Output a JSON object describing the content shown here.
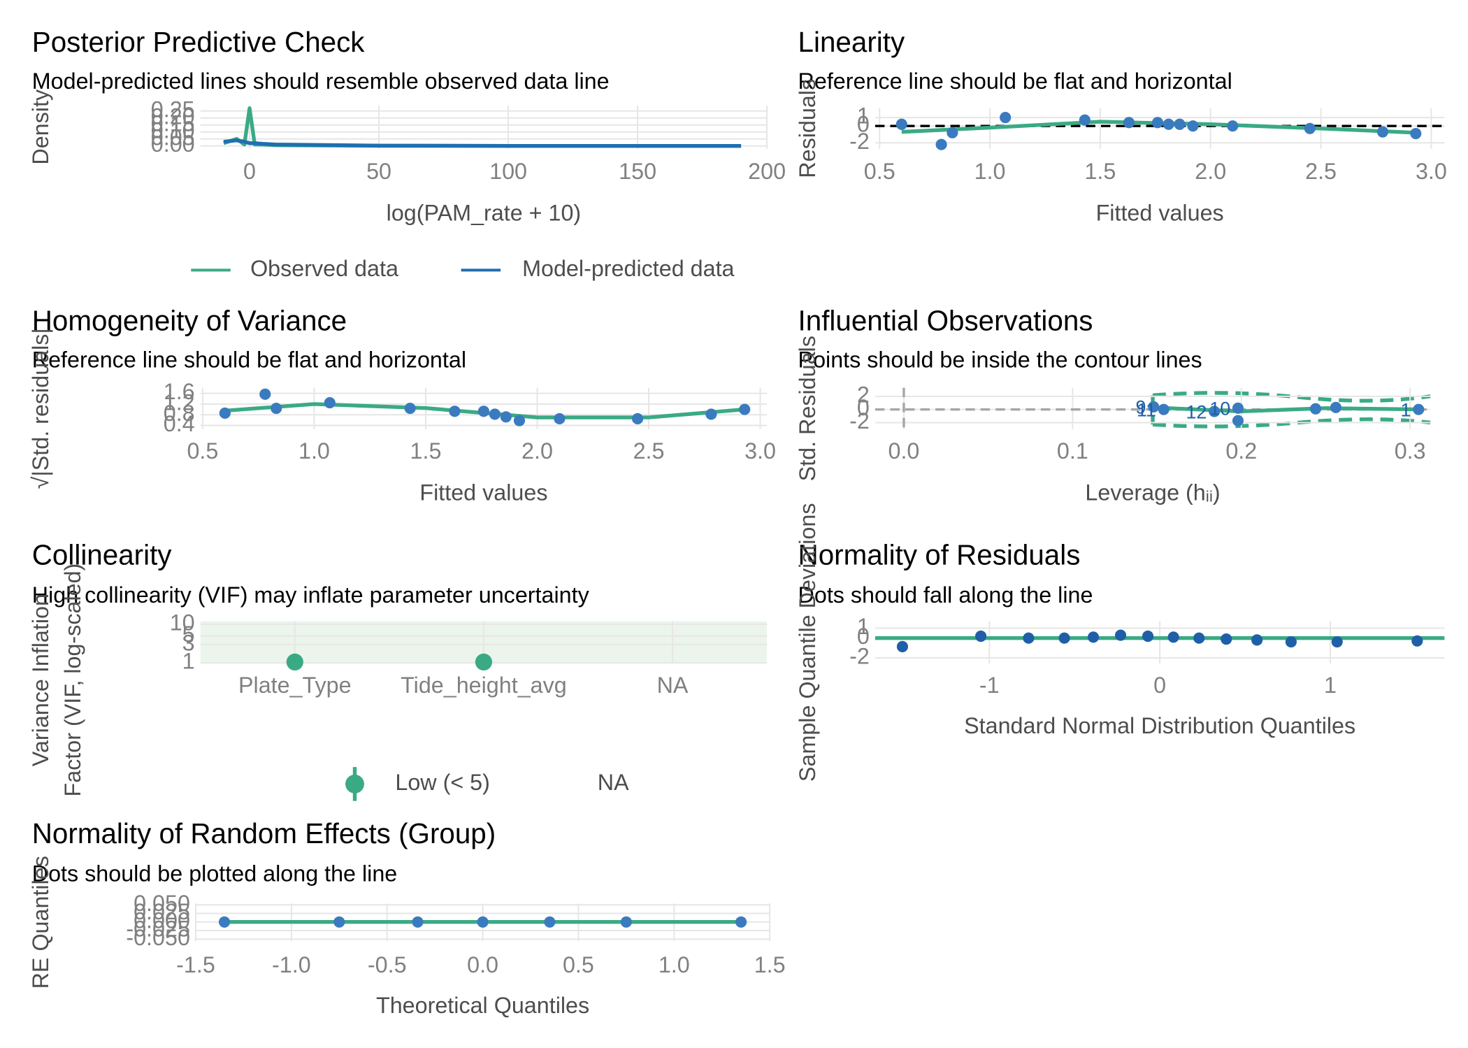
{
  "chart_data": [
    {
      "type": "line",
      "title": "Posterior Predictive Check",
      "subtitle": "Model-predicted lines should resemble observed data line",
      "x_label": "log(PAM_rate + 10)",
      "y_label": "Density",
      "grid": true,
      "legend_position": "bottom",
      "xlim": [
        -19,
        200
      ],
      "xticks": [
        0,
        50,
        100,
        150,
        200
      ],
      "ylim": [
        -0.02,
        0.29
      ],
      "yticks": [
        {
          "value": 0,
          "label": "0.00"
        },
        0.05,
        {
          "value": 0.1,
          "label": "0.10"
        },
        0.15,
        {
          "value": 0.2,
          "label": "0.20"
        },
        0.25
      ],
      "series": [
        {
          "name": "Observed data",
          "mode": "lines",
          "color": "#3aaa85",
          "x": [
            -10,
            -5,
            -2,
            0,
            2,
            5,
            10,
            50,
            100,
            150,
            190
          ],
          "values": [
            0.02,
            0.05,
            0.01,
            0.27,
            0.01,
            0.01,
            0.005,
            0.001,
            0,
            0,
            0
          ]
        },
        {
          "name": "Model-predicted data",
          "mode": "lines",
          "color": "#1f6fb0",
          "x": [
            -10,
            -5,
            -2,
            0,
            2,
            5,
            10,
            50,
            100,
            150,
            190
          ],
          "values": [
            0.03,
            0.04,
            0.03,
            0.02,
            0.02,
            0.015,
            0.01,
            0.002,
            0,
            0,
            0
          ]
        }
      ]
    },
    {
      "type": "scatter",
      "title": "Linearity",
      "subtitle": "Reference line should be flat and horizontal",
      "x_label": "Fitted values",
      "y_label": "Residuals",
      "grid": true,
      "xlim": [
        0.48,
        3.06
      ],
      "xticks": [
        0.5,
        {
          "value": 1,
          "label": "1.0"
        },
        1.5,
        {
          "value": 2,
          "label": "2.0"
        },
        2.5,
        {
          "value": 3,
          "label": "3.0"
        }
      ],
      "ylim": [
        -2.7,
        2.1
      ],
      "yticks": [
        -2,
        0,
        1
      ],
      "reference_lines": [
        {
          "axis": "y",
          "value": 0,
          "color": "#000000",
          "dashed": true
        }
      ],
      "series": [
        {
          "mode": "lines",
          "color": "#3aaa85",
          "x": [
            0.6,
            1.0,
            1.5,
            2.0,
            2.5,
            2.93
          ],
          "values": [
            -0.7,
            -0.2,
            0.5,
            0.2,
            -0.3,
            -0.8
          ]
        },
        {
          "mode": "markers",
          "color": "#3a7bbf",
          "x": [
            0.6,
            0.78,
            0.83,
            1.07,
            1.43,
            1.63,
            1.76,
            1.81,
            1.86,
            1.92,
            2.1,
            2.45,
            2.78,
            2.93
          ],
          "values": [
            0.2,
            -2.2,
            -0.8,
            1.0,
            0.7,
            0.4,
            0.4,
            0.2,
            0.2,
            0,
            0,
            -0.3,
            -0.7,
            -0.9
          ]
        }
      ]
    },
    {
      "type": "scatter",
      "title": "Homogeneity of Variance",
      "subtitle": "Reference line should be flat and horizontal",
      "x_label": "Fitted values",
      "y_label": "√|Std. residuals|",
      "grid": true,
      "xlim": [
        0.49,
        3.03
      ],
      "xticks": [
        0.5,
        {
          "value": 1,
          "label": "1.0"
        },
        1.5,
        {
          "value": 2,
          "label": "2.0"
        },
        2.5,
        {
          "value": 3,
          "label": "3.0"
        }
      ],
      "ylim": [
        0.26,
        1.81
      ],
      "yticks": [
        0.4,
        0.8,
        1.2,
        1.6
      ],
      "series": [
        {
          "mode": "lines",
          "color": "#3aaa85",
          "x": [
            0.6,
            1.0,
            1.5,
            2.0,
            2.5,
            2.93
          ],
          "values": [
            0.95,
            1.2,
            1.05,
            0.7,
            0.7,
            1.0
          ]
        },
        {
          "mode": "markers",
          "color": "#3a7bbf",
          "x": [
            0.6,
            0.78,
            0.83,
            1.07,
            1.43,
            1.63,
            1.76,
            1.81,
            1.86,
            1.92,
            2.1,
            2.45,
            2.78,
            2.93
          ],
          "values": [
            0.86,
            1.57,
            1.04,
            1.25,
            1.04,
            0.93,
            0.93,
            0.82,
            0.72,
            0.58,
            0.65,
            0.65,
            0.82,
            1.0
          ]
        }
      ]
    },
    {
      "type": "scatter",
      "title": "Influential Observations",
      "subtitle": "Points should be inside the contour lines",
      "x_label": "Leverage (hᵢᵢ)",
      "y_label": "Std. Residuals",
      "grid": true,
      "xlim": [
        -0.017,
        0.312
      ],
      "xticks": [
        {
          "value": 0,
          "label": "0.0"
        },
        0.1,
        0.2,
        0.3
      ],
      "ylim": [
        -3.0,
        3.3
      ],
      "yticks": [
        -2,
        0,
        2
      ],
      "reference_lines": [
        {
          "axis": "x",
          "value": 0,
          "color": "#a6a6a6",
          "dashed": true
        },
        {
          "axis": "y",
          "value": 0,
          "color": "#a6a6a6",
          "dashed": true
        }
      ],
      "series": [
        {
          "mode": "lines",
          "color": "#3aaa85",
          "x": [
            0.148,
            0.2,
            0.25,
            0.305
          ],
          "values": [
            0.3,
            -0.3,
            0.2,
            0
          ]
        },
        {
          "mode": "markers",
          "color": "#3a7bbf",
          "x": [
            0.148,
            0.154,
            0.184,
            0.198,
            0.198,
            0.244,
            0.256,
            0.305
          ],
          "values": [
            0.4,
            0,
            -0.3,
            -1.7,
            0.2,
            0.1,
            0.3,
            0
          ],
          "point_labels": [
            "9",
            "11",
            "12",
            null,
            "10",
            null,
            null,
            "1"
          ]
        }
      ]
    },
    {
      "type": "dot",
      "title": "Collinearity",
      "subtitle": "High collinearity (VIF) may inflate parameter uncertainty",
      "y_label": [
        "Variance Inflation",
        "Factor (VIF, log-scaled)"
      ],
      "grid": true,
      "log_y": true,
      "legend_position": "bottom",
      "categories": [
        "Plate_Type",
        "Tide_height_avg",
        "NA"
      ],
      "ylim": [
        0.96,
        12
      ],
      "yticks": [
        1,
        3,
        5,
        10
      ],
      "series": [
        {
          "name": "Low (< 5)",
          "mode": "markers",
          "color": "#3aaa85",
          "values": [
            1.05,
            1.05,
            null
          ]
        },
        {
          "name": "NA",
          "mode": "markers",
          "values": [
            null,
            null,
            null
          ]
        }
      ]
    },
    {
      "type": "scatter",
      "title": "Normality of Residuals",
      "subtitle": "Dots should fall along the line",
      "x_label": "Standard Normal Distribution Quantiles",
      "y_label": "Sample Quantile Deviations",
      "grid": true,
      "xlim": [
        -1.67,
        1.67
      ],
      "xticks": [
        -1,
        0,
        1
      ],
      "ylim": [
        -2.57,
        1.71
      ],
      "yticks": [
        -2,
        0,
        1
      ],
      "reference_lines": [
        {
          "axis": "y",
          "value": 0,
          "color": "#3aaa85",
          "dashed": false
        }
      ],
      "series": [
        {
          "mode": "markers",
          "color": "#1f5fa8",
          "x": [
            -1.51,
            -1.05,
            -0.77,
            -0.56,
            -0.39,
            -0.23,
            -0.07,
            0.08,
            0.23,
            0.39,
            0.57,
            0.77,
            1.04,
            1.51
          ],
          "values": [
            -0.86,
            0.19,
            0,
            0,
            0.1,
            0.29,
            0.19,
            0.1,
            0,
            -0.1,
            -0.19,
            -0.38,
            -0.38,
            -0.29
          ]
        }
      ]
    },
    {
      "type": "scatter",
      "title": "Normality of Random Effects (Group)",
      "subtitle": "Dots should be plotted along the line",
      "x_label": "Theoretical Quantiles",
      "y_label": "RE Quantiles",
      "grid": true,
      "xlim": [
        -1.5,
        1.5
      ],
      "xticks": [
        -1.5,
        {
          "value": -1,
          "label": "-1.0"
        },
        -0.5,
        {
          "value": 0,
          "label": "0.0"
        },
        0.5,
        {
          "value": 1,
          "label": "1.0"
        },
        1.5
      ],
      "ylim": [
        -0.056,
        0.054
      ],
      "yticks": [
        {
          "value": -0.05,
          "label": "-0.050"
        },
        -0.025,
        {
          "value": 0,
          "label": "0.000"
        },
        0.025,
        {
          "value": 0.05,
          "label": "0.050"
        }
      ],
      "series": [
        {
          "mode": "lines",
          "color": "#3aaa85",
          "x": [
            -1.35,
            1.35
          ],
          "values": [
            0,
            0
          ]
        },
        {
          "mode": "markers",
          "color": "#3a7bbf",
          "x": [
            -1.35,
            -0.75,
            -0.34,
            0,
            0.35,
            0.75,
            1.35
          ],
          "values": [
            0,
            0,
            0,
            0,
            0,
            0,
            0
          ]
        }
      ]
    }
  ]
}
